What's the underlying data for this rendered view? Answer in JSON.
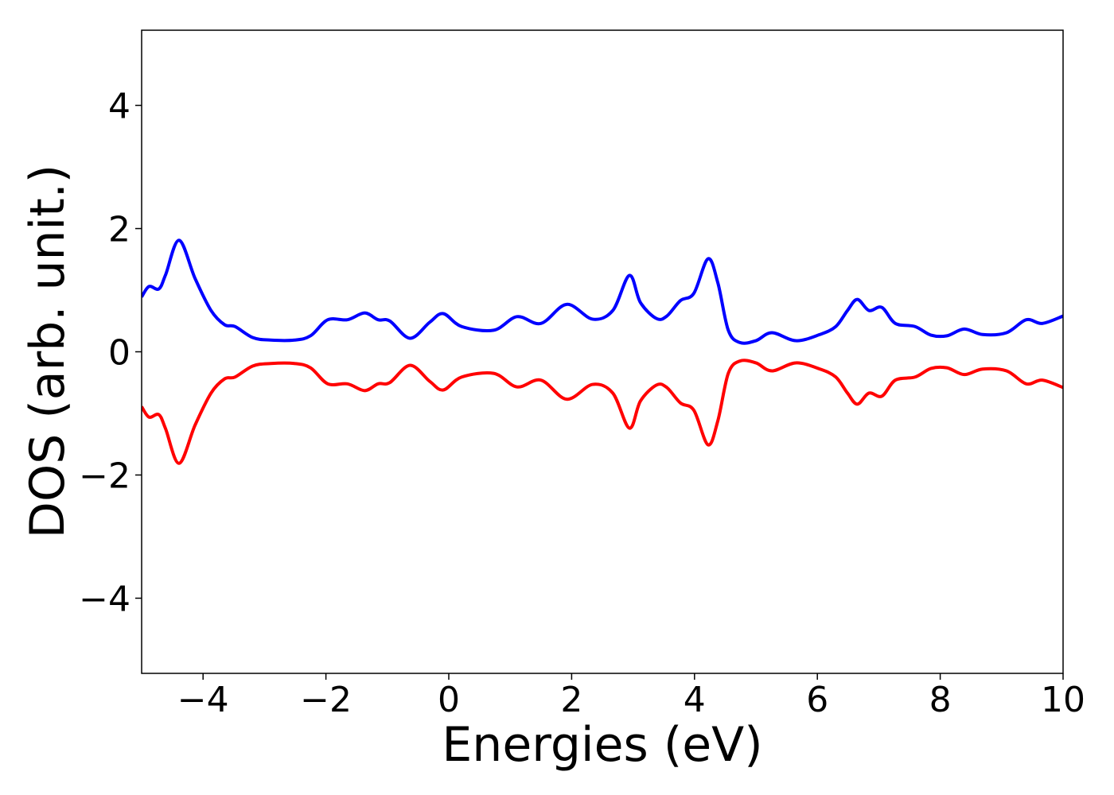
{
  "chart_data": {
    "type": "line",
    "xlabel": "Energies (eV)",
    "ylabel": "DOS (arb. unit.)",
    "x": [
      -5,
      -4.88,
      -4.72,
      -4.61,
      -4.39,
      -4.13,
      -3.87,
      -3.65,
      -3.48,
      -3.19,
      -2.9,
      -2.51,
      -2.25,
      -1.97,
      -1.65,
      -1.37,
      -1.15,
      -0.96,
      -0.63,
      -0.31,
      -0.09,
      0.21,
      0.73,
      1.11,
      1.5,
      1.92,
      2.34,
      2.67,
      2.94,
      3.12,
      3.38,
      3.55,
      3.77,
      3.99,
      4.22,
      4.38,
      4.55,
      4.74,
      5.0,
      5.26,
      5.65,
      6.04,
      6.3,
      6.49,
      6.65,
      6.84,
      7.05,
      7.27,
      7.59,
      7.85,
      8.11,
      8.39,
      8.69,
      9.08,
      9.4,
      9.66,
      10
    ],
    "series": [
      {
        "color": "#0000ff",
        "values": [
          0.89,
          1.06,
          1.02,
          1.25,
          1.81,
          1.19,
          0.67,
          0.44,
          0.41,
          0.23,
          0.19,
          0.19,
          0.26,
          0.52,
          0.52,
          0.63,
          0.52,
          0.5,
          0.22,
          0.48,
          0.62,
          0.41,
          0.35,
          0.57,
          0.46,
          0.77,
          0.53,
          0.67,
          1.24,
          0.8,
          0.54,
          0.58,
          0.83,
          0.95,
          1.51,
          1.12,
          0.35,
          0.15,
          0.18,
          0.31,
          0.18,
          0.28,
          0.41,
          0.67,
          0.85,
          0.67,
          0.72,
          0.46,
          0.41,
          0.27,
          0.26,
          0.37,
          0.28,
          0.31,
          0.52,
          0.46,
          0.58
        ]
      },
      {
        "color": "#ff0000",
        "values": [
          -0.89,
          -1.06,
          -1.02,
          -1.25,
          -1.81,
          -1.19,
          -0.67,
          -0.44,
          -0.41,
          -0.23,
          -0.19,
          -0.19,
          -0.26,
          -0.52,
          -0.52,
          -0.63,
          -0.52,
          -0.5,
          -0.22,
          -0.48,
          -0.62,
          -0.41,
          -0.35,
          -0.57,
          -0.46,
          -0.77,
          -0.53,
          -0.67,
          -1.24,
          -0.8,
          -0.54,
          -0.58,
          -0.83,
          -0.95,
          -1.51,
          -1.12,
          -0.35,
          -0.15,
          -0.18,
          -0.31,
          -0.18,
          -0.28,
          -0.41,
          -0.67,
          -0.85,
          -0.67,
          -0.72,
          -0.46,
          -0.41,
          -0.27,
          -0.26,
          -0.37,
          -0.28,
          -0.31,
          -0.52,
          -0.46,
          -0.58
        ]
      }
    ],
    "xlim": [
      -5,
      10
    ],
    "ylim": [
      -5.22,
      5.22
    ],
    "xticks": [
      {
        "value": -4,
        "label": "−4"
      },
      {
        "value": -2,
        "label": "−2"
      },
      0,
      2,
      4,
      6,
      8,
      10
    ],
    "yticks": [
      {
        "value": -4,
        "label": "−4"
      },
      {
        "value": -2,
        "label": "−2"
      },
      0,
      2,
      4
    ],
    "grid": false
  }
}
